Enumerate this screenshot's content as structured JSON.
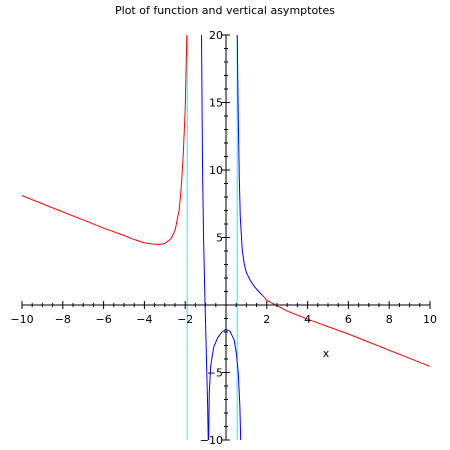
{
  "chart_data": {
    "type": "line",
    "title": "Plot of function and vertical asymptotes",
    "xlabel": "x",
    "ylabel": "",
    "xlim": [
      -10,
      10
    ],
    "ylim": [
      -10,
      20
    ],
    "x_ticks": [
      -10,
      -8,
      -6,
      -4,
      -2,
      2,
      4,
      6,
      8,
      10
    ],
    "y_ticks": [
      -10,
      -5,
      5,
      10,
      15,
      20
    ],
    "x_tick_labels": [
      "−10",
      "−8",
      "−6",
      "−4",
      "−2",
      "2",
      "4",
      "6",
      "8",
      "10"
    ],
    "y_tick_labels": [
      "−10",
      "−5",
      "5",
      "10",
      "15",
      "20"
    ],
    "grid": false,
    "series": [
      {
        "color": "#ff0000",
        "points": [
          [
            -10,
            8.1
          ],
          [
            -9,
            7.5
          ],
          [
            -8,
            6.9
          ],
          [
            -7,
            6.3
          ],
          [
            -6,
            5.7
          ],
          [
            -5,
            5.15
          ],
          [
            -4.5,
            4.85
          ],
          [
            -4,
            4.6
          ],
          [
            -3.5,
            4.5
          ],
          [
            -3.2,
            4.5
          ],
          [
            -3,
            4.55
          ],
          [
            -2.7,
            4.9
          ],
          [
            -2.5,
            5.5
          ],
          [
            -2.3,
            7.0
          ],
          [
            -2.2,
            8.6
          ],
          [
            -2.1,
            11.0
          ],
          [
            -2.0,
            14.5
          ],
          [
            -1.95,
            18.0
          ],
          [
            -1.92,
            20.0
          ]
        ]
      },
      {
        "color": "#ff0000",
        "points": [
          [
            1.8,
            0.7
          ],
          [
            2,
            0.35
          ],
          [
            3,
            -0.45
          ],
          [
            4,
            -1.05
          ],
          [
            5,
            -1.6
          ],
          [
            6,
            -2.15
          ],
          [
            7,
            -2.75
          ],
          [
            8,
            -3.35
          ],
          [
            9,
            -3.95
          ],
          [
            10,
            -4.55
          ]
        ]
      },
      {
        "color": "#0000ff",
        "points": [
          [
            -1.2,
            20
          ],
          [
            -1.15,
            10
          ],
          [
            -1.1,
            5
          ],
          [
            -1.05,
            1.5
          ],
          [
            -1.0,
            -1.5
          ],
          [
            -0.95,
            -4.5
          ],
          [
            -0.9,
            -7.5
          ],
          [
            -0.87,
            -10
          ]
        ]
      },
      {
        "color": "#0000ff",
        "points": [
          [
            -0.85,
            -10
          ],
          [
            -0.82,
            -6.5
          ],
          [
            -0.75,
            -4.5
          ],
          [
            -0.6,
            -3.1
          ],
          [
            -0.4,
            -2.4
          ],
          [
            -0.2,
            -2.0
          ],
          [
            0,
            -1.8
          ],
          [
            0.2,
            -1.95
          ],
          [
            0.4,
            -2.6
          ],
          [
            0.5,
            -3.5
          ],
          [
            0.6,
            -5.0
          ],
          [
            0.68,
            -7.5
          ],
          [
            0.72,
            -10
          ]
        ]
      },
      {
        "color": "#0000ff",
        "points": [
          [
            0.55,
            20
          ],
          [
            0.6,
            14
          ],
          [
            0.65,
            9.5
          ],
          [
            0.7,
            6.5
          ],
          [
            0.8,
            4.0
          ],
          [
            0.9,
            3.0
          ],
          [
            1.0,
            2.4
          ],
          [
            1.2,
            1.8
          ],
          [
            1.4,
            1.35
          ],
          [
            1.6,
            1.0
          ],
          [
            1.8,
            0.7
          ]
        ]
      }
    ],
    "asymptotes": {
      "color": "#00ffff",
      "x": [
        -1.9,
        0.55
      ]
    }
  }
}
